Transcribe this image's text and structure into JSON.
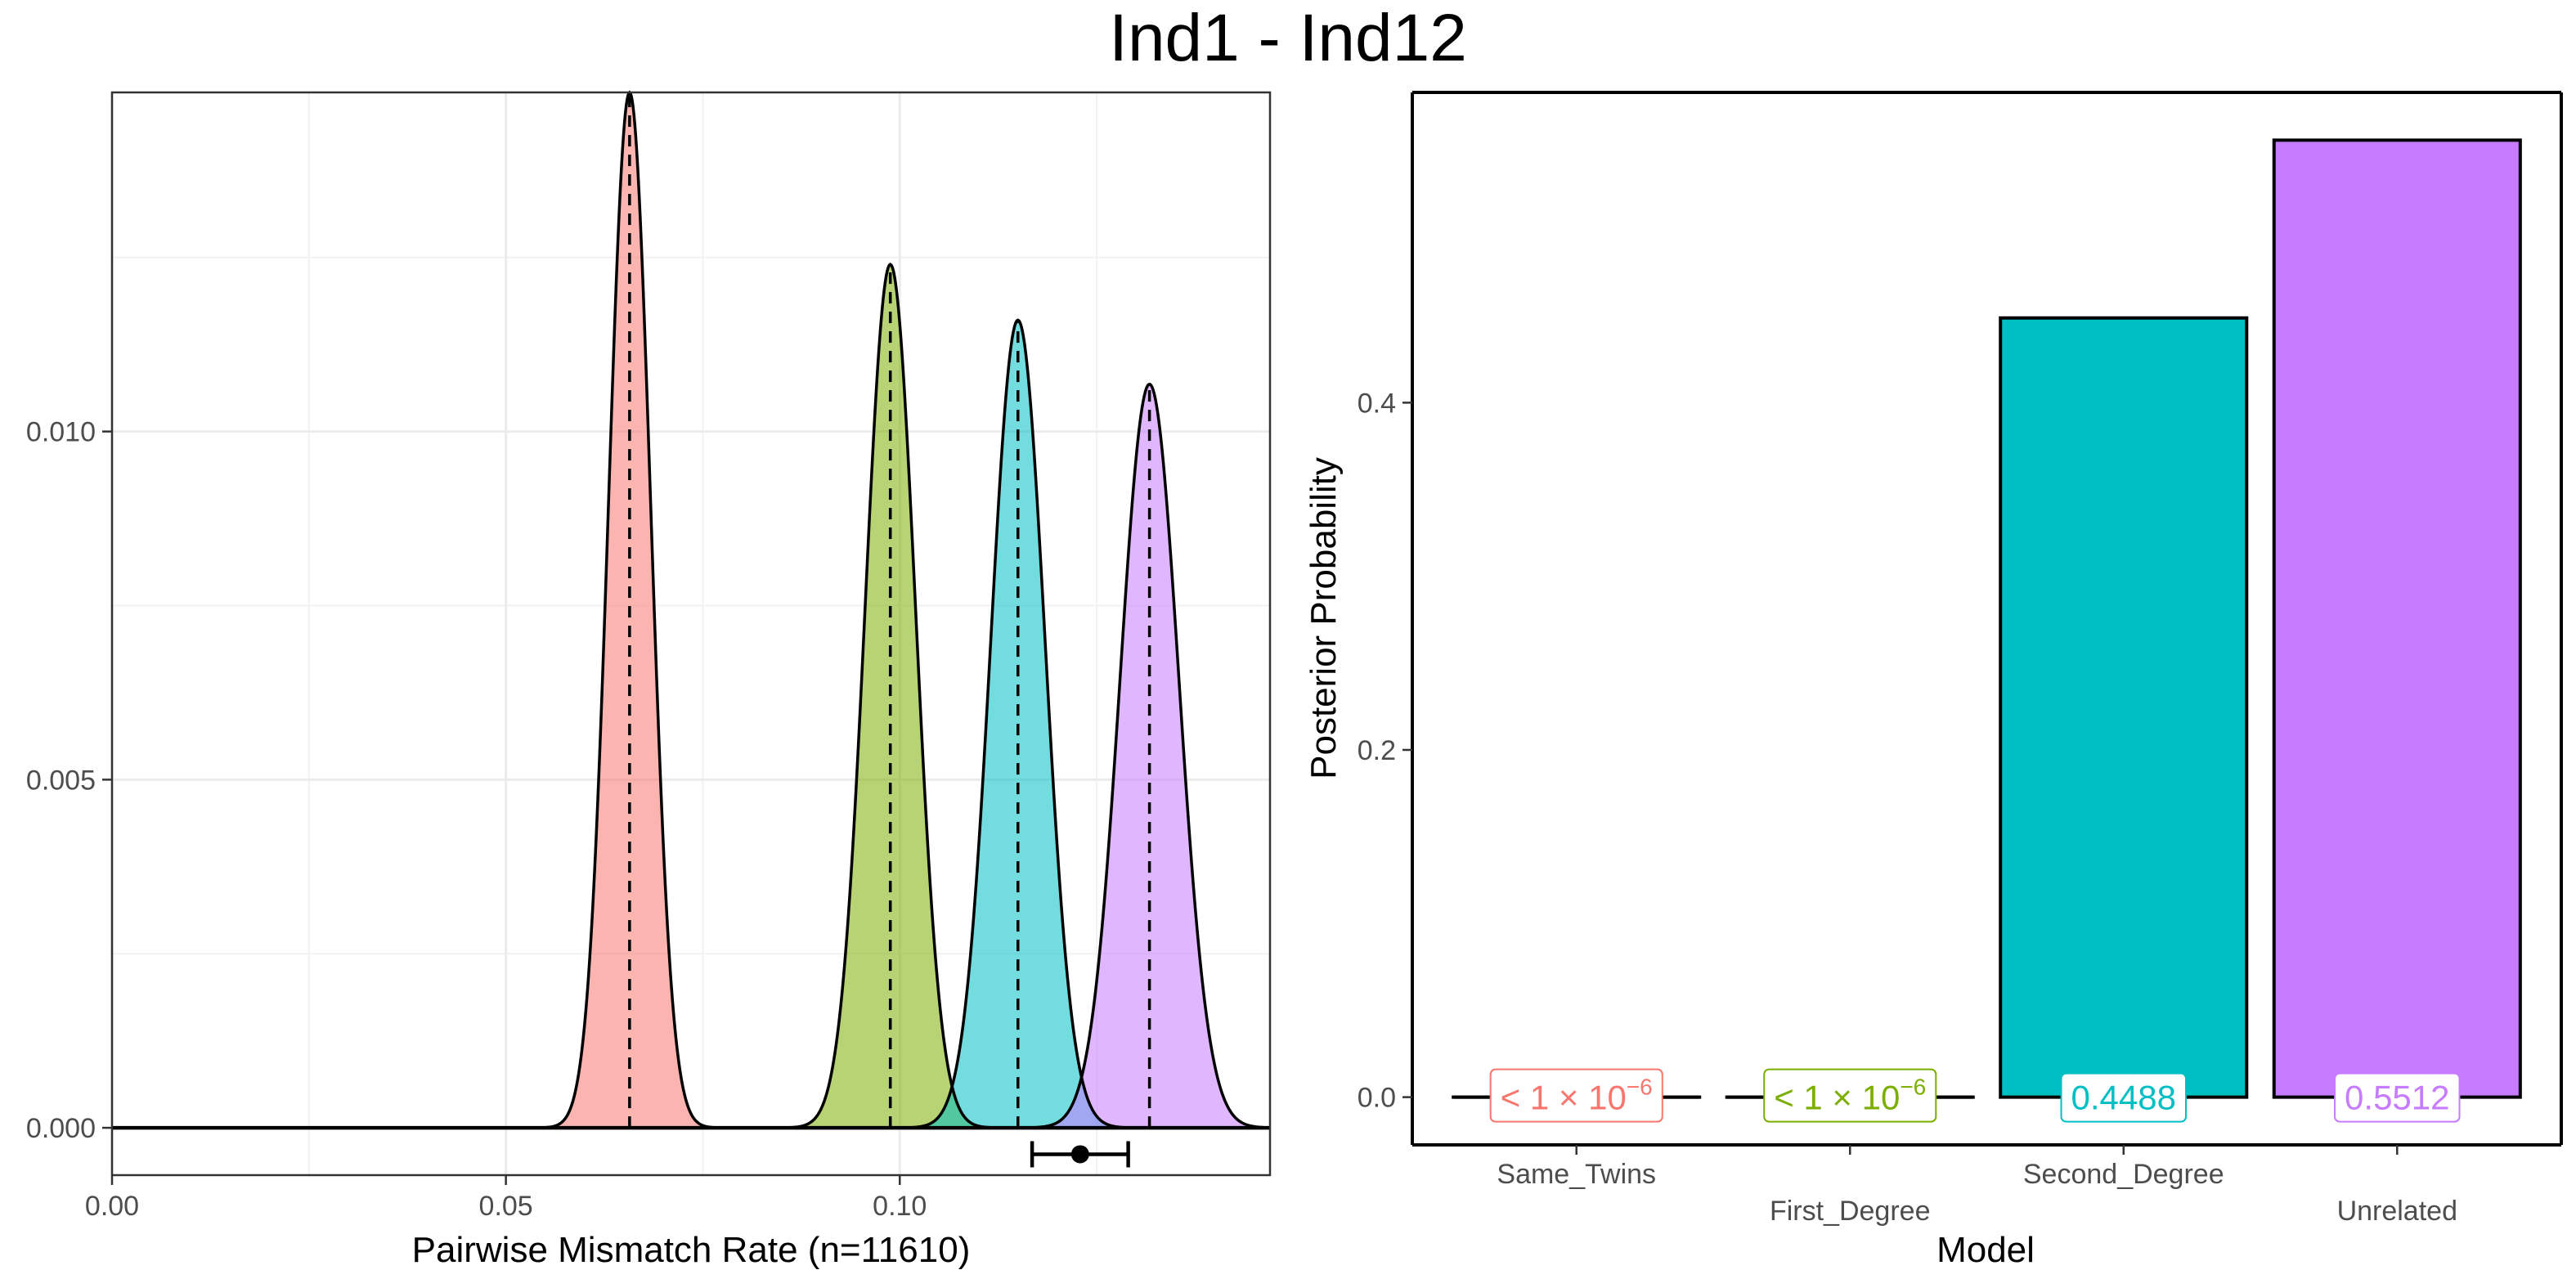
{
  "figure": {
    "title": "Ind1 - Ind12"
  },
  "chart_data": [
    {
      "type": "area",
      "title": "",
      "xlabel": "Pairwise Mismatch Rate (n=11610)",
      "ylabel": "",
      "xlim": [
        0.0,
        0.147
      ],
      "ylim": [
        -0.00068,
        0.01487
      ],
      "x_ticks": [
        {
          "value": 0.0,
          "label": "0.00"
        },
        {
          "value": 0.05,
          "label": "0.05"
        },
        {
          "value": 0.1,
          "label": "0.10"
        }
      ],
      "y_ticks": [
        {
          "value": 0.0,
          "label": "0.000"
        },
        {
          "value": 0.005,
          "label": "0.005"
        },
        {
          "value": 0.01,
          "label": "0.010"
        }
      ],
      "x_minor_gridlines": [
        0.025,
        0.075,
        0.125
      ],
      "y_minor_gridlines": [
        0.0025,
        0.0075,
        0.0125
      ],
      "grid": true,
      "series": [
        {
          "mean": 0.0657,
          "sd": 0.00266,
          "peak": 0.01487,
          "color": "#F8766D"
        },
        {
          "mean": 0.0988,
          "sd": 0.00318,
          "peak": 0.0124,
          "color": "#7CAE00"
        },
        {
          "mean": 0.115,
          "sd": 0.00343,
          "peak": 0.0116,
          "color": "#00BFC4"
        },
        {
          "mean": 0.1317,
          "sd": 0.00372,
          "peak": 0.01068,
          "color": "#C77CFF"
        }
      ],
      "observed": {
        "value": 0.1229,
        "ci_low": 0.1168,
        "ci_high": 0.129,
        "y": -0.00038
      }
    },
    {
      "type": "bar",
      "title": "",
      "xlabel": "Model",
      "ylabel": "Posterior Probability",
      "ylim": [
        -0.0275,
        0.5787
      ],
      "categories": [
        "Same_Twins",
        "First_Degree",
        "Second_Degree",
        "Unrelated"
      ],
      "values": [
        1e-06,
        1e-06,
        0.4488,
        0.5512
      ],
      "colors": [
        "#F8766D",
        "#7CAE00",
        "#00BFC4",
        "#C77CFF"
      ],
      "value_labels": [
        "< 1 × 10",
        "< 1 × 10",
        "0.4488",
        "0.5512"
      ],
      "label_exponents": [
        "−6",
        "−6",
        "",
        ""
      ],
      "y_ticks": [
        {
          "value": 0.0,
          "label": "0.0"
        },
        {
          "value": 0.2,
          "label": "0.2"
        },
        {
          "value": 0.4,
          "label": "0.4"
        }
      ],
      "grid": false
    }
  ]
}
